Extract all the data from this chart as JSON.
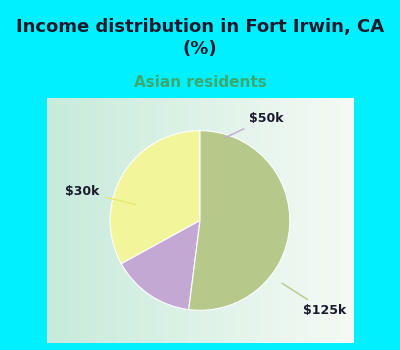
{
  "title": "Income distribution in Fort Irwin, CA\n(%)",
  "subtitle": "Asian residents",
  "slices": [
    {
      "label": "$30k",
      "value": 33,
      "color": "#f2f59a"
    },
    {
      "label": "$50k",
      "value": 15,
      "color": "#c4a8d4"
    },
    {
      "label": "$125k",
      "value": 52,
      "color": "#b5c98a"
    }
  ],
  "bg_color_top": "#00f0ff",
  "bg_color_pie": "#e0f5ec",
  "title_color": "#1a1a2e",
  "subtitle_color": "#3aaa70",
  "title_fontsize": 13,
  "subtitle_fontsize": 11,
  "label_fontsize": 9,
  "start_angle": 90,
  "label_color": "#1a1a2e"
}
